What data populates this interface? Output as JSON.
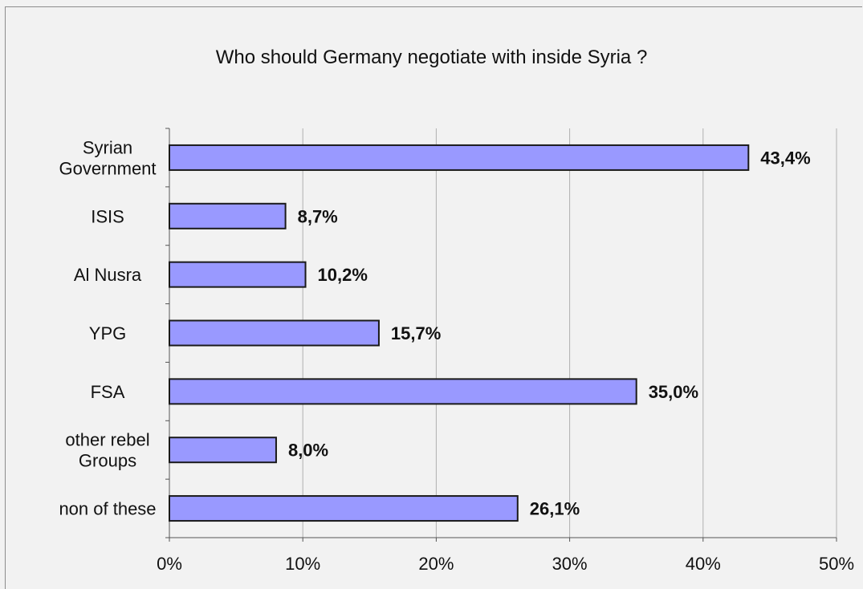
{
  "chart_data": {
    "type": "bar",
    "orientation": "horizontal",
    "title": "Who should Germany negotiate with inside Syria ?",
    "categories": [
      [
        "Syrian",
        "Government"
      ],
      [
        "ISIS"
      ],
      [
        "Al Nusra"
      ],
      [
        "YPG"
      ],
      [
        "FSA"
      ],
      [
        "other rebel",
        "Groups"
      ],
      [
        "non of these"
      ]
    ],
    "values": [
      43.4,
      8.7,
      10.2,
      15.7,
      35.0,
      8.0,
      26.1
    ],
    "data_labels": [
      "43,4%",
      "8,7%",
      "10,2%",
      "15,7%",
      "35,0%",
      "8,0%",
      "26,1%"
    ],
    "xlim": [
      0,
      50
    ],
    "x_ticks": [
      0,
      10,
      20,
      30,
      40,
      50
    ],
    "x_tick_labels": [
      "0%",
      "10%",
      "20%",
      "30%",
      "40%",
      "50%"
    ],
    "grid": "vertical",
    "legend": "none",
    "colors": {
      "bar_fill": "#9999ff",
      "bar_stroke": "#1a1a1a",
      "grid": "#b0b0b0",
      "background": "#f2f2f2"
    }
  }
}
